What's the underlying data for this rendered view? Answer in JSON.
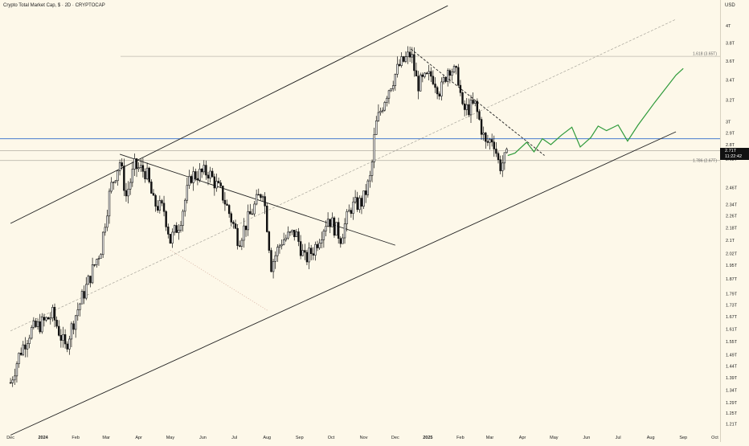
{
  "header": {
    "title": "Crypto Total Market Cap, $ · 2D · CRYPTOCAP",
    "currency": "USD"
  },
  "price_badge": {
    "price": "2.71T",
    "countdown": "11:22:42"
  },
  "fib_labels": {
    "upper": "1.618 (3.65T)",
    "lower": "1.786 (2.67T)"
  },
  "colors": {
    "background": "#fdf8e9",
    "candle": "#111111",
    "projection": "#2e9a3a",
    "hline": "#4a7ccf",
    "grid": "#bdb9ad"
  },
  "chart_data": {
    "type": "candlestick",
    "title": "Crypto Total Market Cap, $ · 2D · CRYPTOCAP",
    "y_scale": "log",
    "ylim": [
      1.2,
      4.2
    ],
    "yticks": [
      "4T",
      "3.8T",
      "3.6T",
      "3.4T",
      "3.2T",
      "3T",
      "2.9T",
      "2.8T",
      "2.68T",
      "2.46T",
      "2.34T",
      "2.26T",
      "2.18T",
      "2.1T",
      "2.02T",
      "1.95T",
      "1.87T",
      "1.79T",
      "1.73T",
      "1.67T",
      "1.61T",
      "1.55T",
      "1.49T",
      "1.44T",
      "1.39T",
      "1.34T",
      "1.29T",
      "1.25T",
      "1.21T"
    ],
    "xticks": [
      "Dec",
      "2024",
      "Feb",
      "Mar",
      "Apr",
      "May",
      "Jun",
      "Jul",
      "Aug",
      "Sep",
      "Oct",
      "Nov",
      "Dec",
      "2025",
      "Feb",
      "Mar",
      "Apr",
      "May",
      "Jun",
      "Jul",
      "Aug",
      "Sep",
      "Oct"
    ],
    "price_path": [
      [
        "2023-12-01",
        1.37
      ],
      [
        "2023-12-10",
        1.5
      ],
      [
        "2023-12-20",
        1.6
      ],
      [
        "2024-01-01",
        1.64
      ],
      [
        "2024-01-10",
        1.68
      ],
      [
        "2024-01-22",
        1.52
      ],
      [
        "2024-02-01",
        1.68
      ],
      [
        "2024-02-12",
        1.84
      ],
      [
        "2024-02-25",
        2.05
      ],
      [
        "2024-03-05",
        2.45
      ],
      [
        "2024-03-14",
        2.66
      ],
      [
        "2024-03-20",
        2.4
      ],
      [
        "2024-03-28",
        2.62
      ],
      [
        "2024-04-08",
        2.58
      ],
      [
        "2024-04-15",
        2.35
      ],
      [
        "2024-04-25",
        2.3
      ],
      [
        "2024-05-01",
        2.1
      ],
      [
        "2024-05-10",
        2.22
      ],
      [
        "2024-05-21",
        2.55
      ],
      [
        "2024-06-06",
        2.58
      ],
      [
        "2024-06-20",
        2.4
      ],
      [
        "2024-07-05",
        2.1
      ],
      [
        "2024-07-15",
        2.25
      ],
      [
        "2024-07-28",
        2.45
      ],
      [
        "2024-08-05",
        1.95
      ],
      [
        "2024-08-15",
        2.1
      ],
      [
        "2024-08-28",
        2.15
      ],
      [
        "2024-09-06",
        1.98
      ],
      [
        "2024-09-15",
        2.05
      ],
      [
        "2024-09-28",
        2.25
      ],
      [
        "2024-10-10",
        2.12
      ],
      [
        "2024-10-20",
        2.32
      ],
      [
        "2024-10-31",
        2.36
      ],
      [
        "2024-11-08",
        2.55
      ],
      [
        "2024-11-12",
        2.95
      ],
      [
        "2024-11-22",
        3.25
      ],
      [
        "2024-12-05",
        3.55
      ],
      [
        "2024-12-16",
        3.68
      ],
      [
        "2024-12-22",
        3.35
      ],
      [
        "2025-01-05",
        3.45
      ],
      [
        "2025-01-13",
        3.28
      ],
      [
        "2025-01-21",
        3.55
      ],
      [
        "2025-01-30",
        3.42
      ],
      [
        "2025-02-03",
        3.1
      ],
      [
        "2025-02-15",
        3.15
      ],
      [
        "2025-02-25",
        2.8
      ],
      [
        "2025-03-04",
        2.86
      ],
      [
        "2025-03-10",
        2.62
      ],
      [
        "2025-03-18",
        2.71
      ]
    ],
    "projection": [
      [
        "2025-03-18",
        2.71
      ],
      [
        "2025-03-25",
        2.73
      ],
      [
        "2025-04-05",
        2.82
      ],
      [
        "2025-04-12",
        2.74
      ],
      [
        "2025-04-20",
        2.85
      ],
      [
        "2025-04-28",
        2.8
      ],
      [
        "2025-05-08",
        2.88
      ],
      [
        "2025-05-18",
        2.95
      ],
      [
        "2025-05-26",
        2.78
      ],
      [
        "2025-06-05",
        2.86
      ],
      [
        "2025-06-12",
        2.96
      ],
      [
        "2025-06-20",
        2.92
      ],
      [
        "2025-07-01",
        2.97
      ],
      [
        "2025-07-10",
        2.83
      ],
      [
        "2025-07-20",
        2.97
      ],
      [
        "2025-08-05",
        3.18
      ],
      [
        "2025-08-25",
        3.45
      ],
      [
        "2025-09-01",
        3.52
      ]
    ],
    "hlines": [
      {
        "value": 3.65,
        "label": "1.618 (3.65T)"
      },
      {
        "value": 2.85,
        "label": ""
      },
      {
        "value": 2.75,
        "label": ""
      },
      {
        "value": 2.67,
        "label": "1.786 (2.67T)"
      }
    ],
    "trendlines": [
      {
        "name": "channel-upper",
        "points": [
          [
            "2023-12-01",
            2.21
          ],
          [
            "2025-01-20",
            4.25
          ]
        ]
      },
      {
        "name": "channel-lower",
        "points": [
          [
            "2023-12-01",
            1.17
          ],
          [
            "2025-08-25",
            2.91
          ]
        ]
      },
      {
        "name": "channel-mid",
        "points": [
          [
            "2023-12-01",
            1.6
          ],
          [
            "2025-08-25",
            4.08
          ]
        ],
        "dashed": true
      },
      {
        "name": "descending-triangle",
        "points": [
          [
            "2024-03-14",
            2.72
          ],
          [
            "2024-12-01",
            2.07
          ]
        ]
      },
      {
        "name": "descending-dashed",
        "points": [
          [
            "2024-12-16",
            3.73
          ],
          [
            "2025-04-22",
            2.71
          ]
        ],
        "dashed": true
      },
      {
        "name": "dotted-diagonal",
        "points": [
          [
            "2024-05-01",
            2.04
          ],
          [
            "2024-08-02",
            1.7
          ]
        ],
        "dotted": true
      }
    ]
  }
}
